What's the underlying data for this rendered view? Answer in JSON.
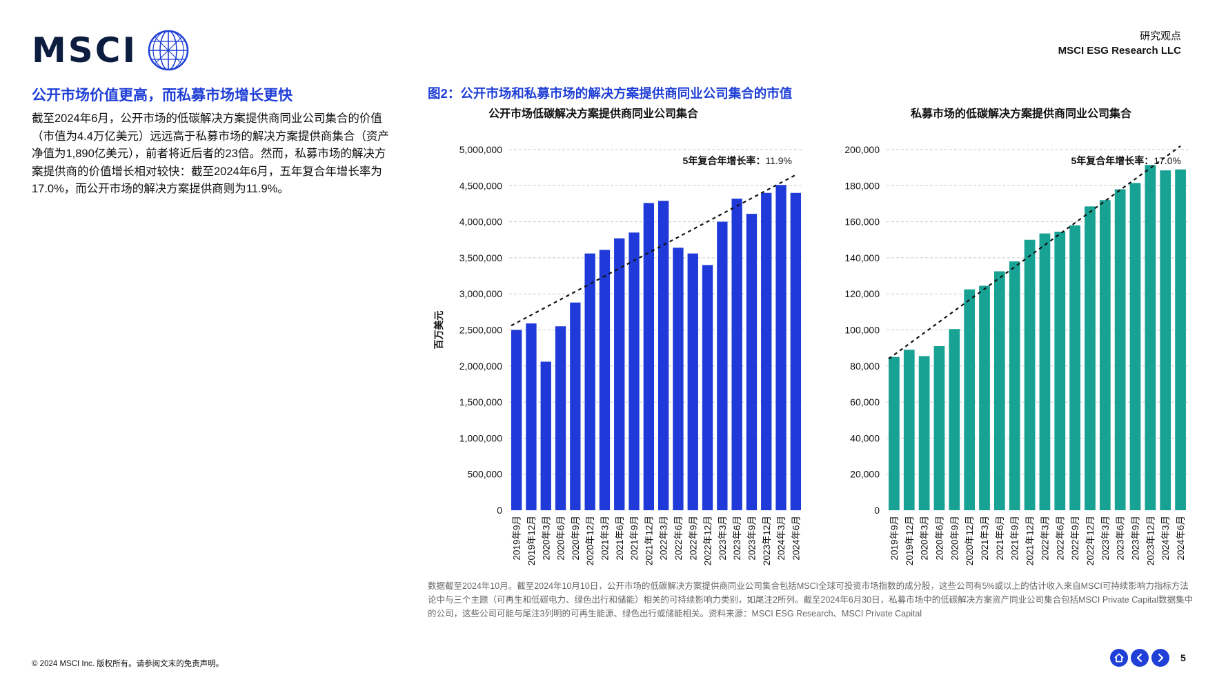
{
  "header": {
    "logo_text": "MSCI",
    "doc_type": "研究观点",
    "org": "MSCI ESG Research LLC"
  },
  "left": {
    "heading": "公开市场价值更高，而私募市场增长更快",
    "body": "截至2024年6月，公开市场的低碳解决方案提供商同业公司集合的价值（市值为4.4万亿美元）远远高于私募市场的解决方案提供商集合（资产净值为1,890亿美元），前者将近后者的23倍。然而，私募市场的解决方案提供商的价值增长相对较快：截至2024年6月，五年复合年增长率为17.0%，而公开市场的解决方案提供商则为11.9%。"
  },
  "figure_title": "图2：公开市场和私募市场的解决方案提供商同业公司集合的市值",
  "chart_data": [
    {
      "type": "bar",
      "title": "公开市场低碳解决方案提供商同业公司集合",
      "ylabel": "百万美元",
      "ylim": [
        0,
        5000000
      ],
      "yticks": [
        0,
        500000,
        1000000,
        1500000,
        2000000,
        2500000,
        3000000,
        3500000,
        4000000,
        4500000,
        5000000
      ],
      "ytick_labels": [
        "0",
        "500,000",
        "1,000,000",
        "1,500,000",
        "2,000,000",
        "2,500,000",
        "3,000,000",
        "3,500,000",
        "4,000,000",
        "4,500,000",
        "5,000,000"
      ],
      "categories": [
        "2019年9月",
        "2019年12月",
        "2020年3月",
        "2020年6月",
        "2020年9月",
        "2020年12月",
        "2021年3月",
        "2021年6月",
        "2021年9月",
        "2021年12月",
        "2022年3月",
        "2022年6月",
        "2022年9月",
        "2022年12月",
        "2023年3月",
        "2023年6月",
        "2023年9月",
        "2023年12月",
        "2024年3月",
        "2024年6月"
      ],
      "values": [
        2500000,
        2590000,
        2060000,
        2550000,
        2880000,
        3560000,
        3610000,
        3770000,
        3850000,
        4260000,
        4290000,
        3640000,
        3560000,
        3400000,
        4000000,
        4320000,
        4110000,
        4400000,
        4510000,
        4400000
      ],
      "trend": {
        "style": "dashed",
        "start": 2560000,
        "end": 4650000
      },
      "annotation_label": "5年复合年增长率：",
      "annotation_value": "11.9%",
      "grid": true,
      "color": "#1f3ad8"
    },
    {
      "type": "bar",
      "title": "私募市场的低碳解决方案提供商同业公司集合",
      "ylabel": "",
      "ylim": [
        0,
        200000
      ],
      "yticks": [
        0,
        20000,
        40000,
        60000,
        80000,
        100000,
        120000,
        140000,
        160000,
        180000,
        200000
      ],
      "ytick_labels": [
        "0",
        "20,000",
        "40,000",
        "60,000",
        "80,000",
        "100,000",
        "120,000",
        "140,000",
        "160,000",
        "180,000",
        "200,000"
      ],
      "categories": [
        "2019年9月",
        "2019年12月",
        "2020年3月",
        "2020年6月",
        "2020年9月",
        "2020年12月",
        "2021年3月",
        "2021年6月",
        "2021年9月",
        "2021年12月",
        "2022年3月",
        "2022年6月",
        "2022年9月",
        "2022年12月",
        "2023年3月",
        "2023年6月",
        "2023年9月",
        "2023年12月",
        "2024年3月",
        "2024年6月"
      ],
      "values": [
        85000,
        89000,
        85500,
        91000,
        100500,
        122500,
        124500,
        132500,
        138000,
        150000,
        153500,
        154500,
        158000,
        168500,
        172000,
        178000,
        181500,
        191500,
        188500,
        189000
      ],
      "trend": {
        "style": "dashed",
        "start": 84000,
        "end": 202000
      },
      "annotation_label": "5年复合年增长率：",
      "annotation_value": "17.0%",
      "grid": true,
      "color": "#17a294"
    }
  ],
  "footnote": "数据截至2024年10月。截至2024年10月10日，公开市场的低碳解决方案提供商同业公司集合包括MSCI全球可投资市场指数的成分股，这些公司有5%或以上的估计收入来自MSCI可持续影响力指标方法论中与三个主题（可再生和低碳电力、绿色出行和储能）相关的可持续影响力类别，如尾注2所列。截至2024年6月30日，私募市场中的低碳解决方案资产同业公司集合包括MSCI Private Capital数据集中的公司，这些公司可能与尾注3列明的可再生能源、绿色出行或储能相关。资料来源：MSCI ESG Research、MSCI Private Capital",
  "footer": {
    "copyright": "© 2024 MSCI Inc. 版权所有。请参阅文末的免责声明。",
    "page_number": "5",
    "nav_icons": [
      "home-icon",
      "chevron-left-icon",
      "chevron-right-icon"
    ]
  }
}
